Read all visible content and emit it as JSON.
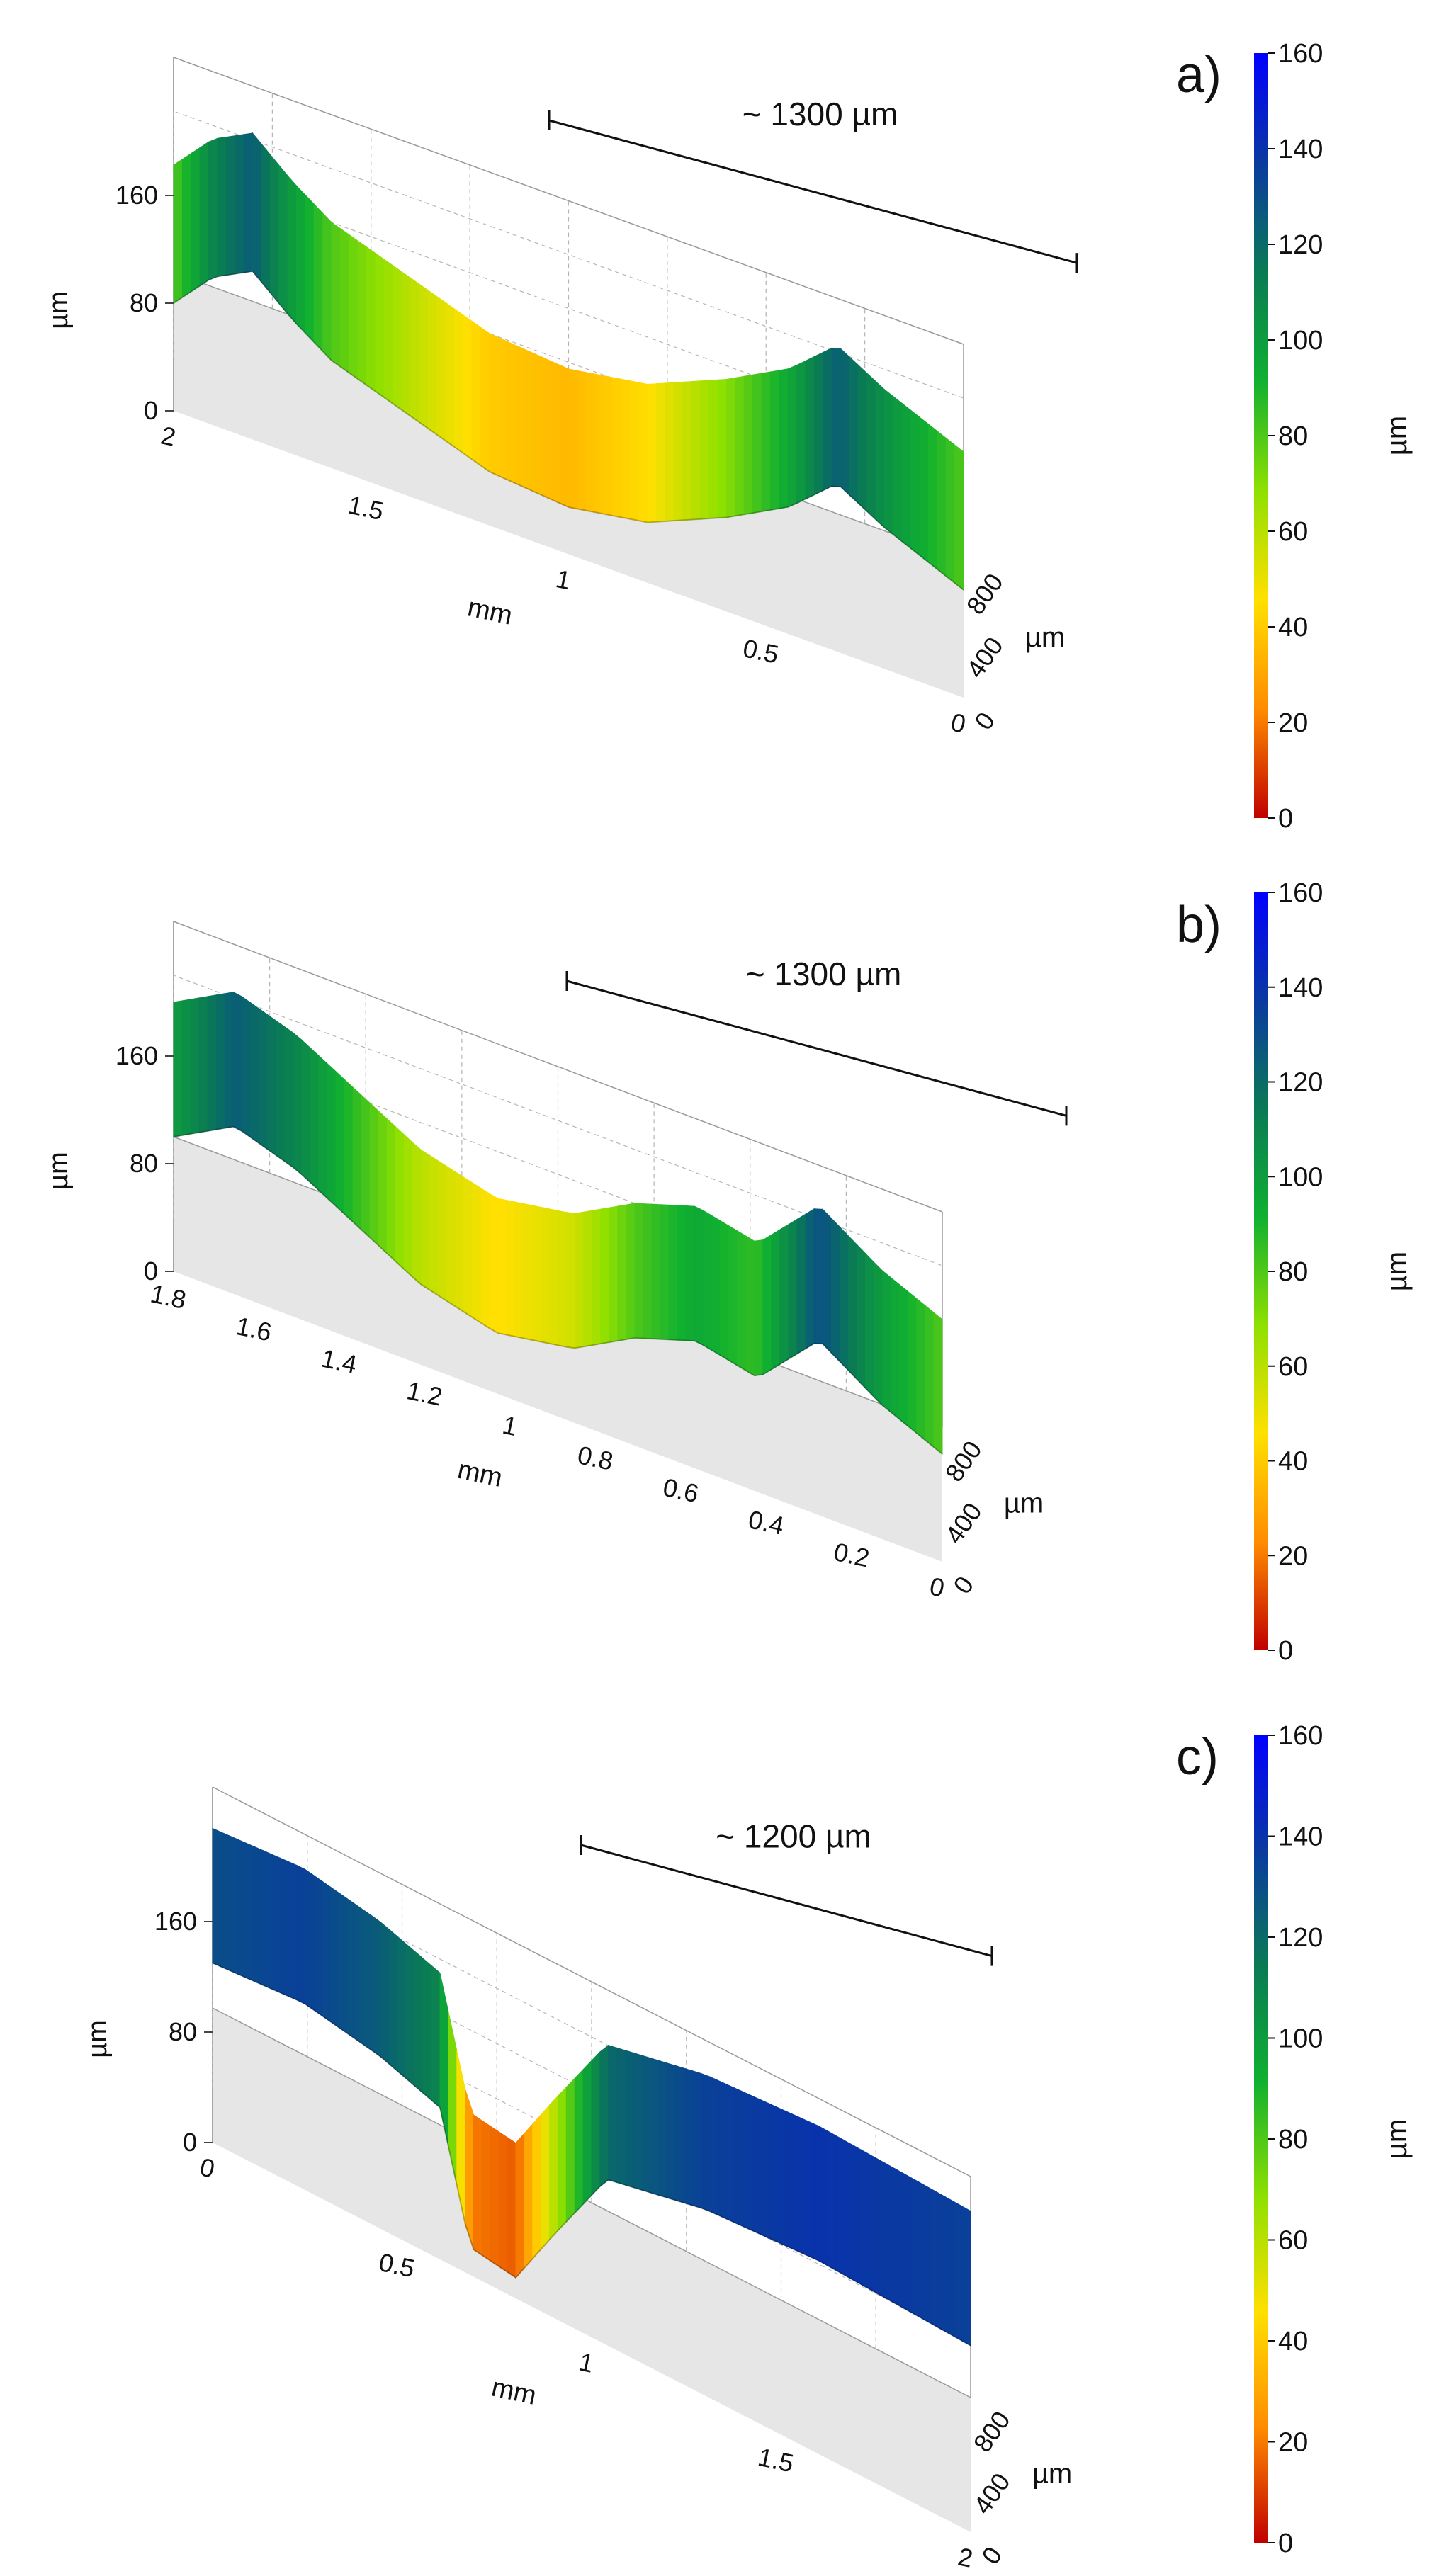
{
  "colorscale": {
    "stops": [
      "#c00000",
      "#ff8c00",
      "#ffe000",
      "#8ee000",
      "#10b030",
      "#0a7a55",
      "#0a3aa0",
      "#0000ff"
    ],
    "unit": "µm",
    "ticks": [
      "160",
      "140",
      "120",
      "100",
      "80",
      "60",
      "40",
      "20",
      "0"
    ]
  },
  "chart_data": [
    {
      "type": "heatmap",
      "panel_label": "a)",
      "annotation": "~ 1300 µm",
      "x_unit": "mm",
      "x_ticks": [
        "2",
        "1.5",
        "1",
        "0.5",
        "0"
      ],
      "y_unit": "µm",
      "y_ticks": [
        "800",
        "400",
        "0"
      ],
      "z_unit": "µm",
      "z_ticks": [
        "160",
        "80",
        "0"
      ],
      "zlim": [
        0,
        160
      ],
      "colorbar_ticks": [
        "160",
        "140",
        "120",
        "100",
        "80",
        "60",
        "40",
        "20",
        "0"
      ],
      "colorbar_label": "µm",
      "profile": [
        {
          "t": 0.0,
          "h": 80
        },
        {
          "t": 0.05,
          "h": 110
        },
        {
          "t": 0.1,
          "h": 125
        },
        {
          "t": 0.15,
          "h": 100
        },
        {
          "t": 0.2,
          "h": 80
        },
        {
          "t": 0.3,
          "h": 60
        },
        {
          "t": 0.4,
          "h": 40
        },
        {
          "t": 0.5,
          "h": 35
        },
        {
          "t": 0.6,
          "h": 45
        },
        {
          "t": 0.7,
          "h": 70
        },
        {
          "t": 0.78,
          "h": 95
        },
        {
          "t": 0.84,
          "h": 125
        },
        {
          "t": 0.9,
          "h": 105
        },
        {
          "t": 1.0,
          "h": 80
        }
      ]
    },
    {
      "type": "heatmap",
      "panel_label": "b)",
      "annotation": "~ 1300 µm",
      "x_unit": "mm",
      "x_ticks": [
        "1.8",
        "1.6",
        "1.4",
        "1.2",
        "1",
        "0.8",
        "0.6",
        "0.4",
        "0.2",
        "0"
      ],
      "y_unit": "µm",
      "y_ticks": [
        "800",
        "400",
        "0"
      ],
      "z_unit": "µm",
      "z_ticks": [
        "160",
        "80",
        "0"
      ],
      "zlim": [
        0,
        160
      ],
      "colorbar_ticks": [
        "160",
        "140",
        "120",
        "100",
        "80",
        "60",
        "40",
        "20",
        "0"
      ],
      "colorbar_label": "µm",
      "profile": [
        {
          "t": 0.0,
          "h": 100
        },
        {
          "t": 0.08,
          "h": 125
        },
        {
          "t": 0.16,
          "h": 110
        },
        {
          "t": 0.24,
          "h": 85
        },
        {
          "t": 0.32,
          "h": 60
        },
        {
          "t": 0.42,
          "h": 45
        },
        {
          "t": 0.52,
          "h": 55
        },
        {
          "t": 0.6,
          "h": 80
        },
        {
          "t": 0.68,
          "h": 95
        },
        {
          "t": 0.76,
          "h": 85
        },
        {
          "t": 0.84,
          "h": 130
        },
        {
          "t": 0.92,
          "h": 100
        },
        {
          "t": 1.0,
          "h": 80
        }
      ]
    },
    {
      "type": "heatmap",
      "panel_label": "c)",
      "annotation": "~ 1200 µm",
      "x_unit": "mm",
      "x_ticks": [
        "0",
        "0.5",
        "1",
        "1.5",
        "2"
      ],
      "y_unit": "µm",
      "y_ticks": [
        "800",
        "400",
        "0"
      ],
      "z_unit": "µm",
      "z_ticks": [
        "160",
        "80",
        "0"
      ],
      "zlim": [
        0,
        160
      ],
      "colorbar_ticks": [
        "160",
        "140",
        "120",
        "100",
        "80",
        "60",
        "40",
        "20",
        "0"
      ],
      "colorbar_label": "µm",
      "profile": [
        {
          "t": 0.0,
          "h": 130
        },
        {
          "t": 0.12,
          "h": 135
        },
        {
          "t": 0.22,
          "h": 125
        },
        {
          "t": 0.3,
          "h": 110
        },
        {
          "t": 0.34,
          "h": 20
        },
        {
          "t": 0.4,
          "h": 15
        },
        {
          "t": 0.45,
          "h": 60
        },
        {
          "t": 0.52,
          "h": 120
        },
        {
          "t": 0.65,
          "h": 135
        },
        {
          "t": 0.8,
          "h": 140
        },
        {
          "t": 1.0,
          "h": 135
        }
      ]
    }
  ]
}
